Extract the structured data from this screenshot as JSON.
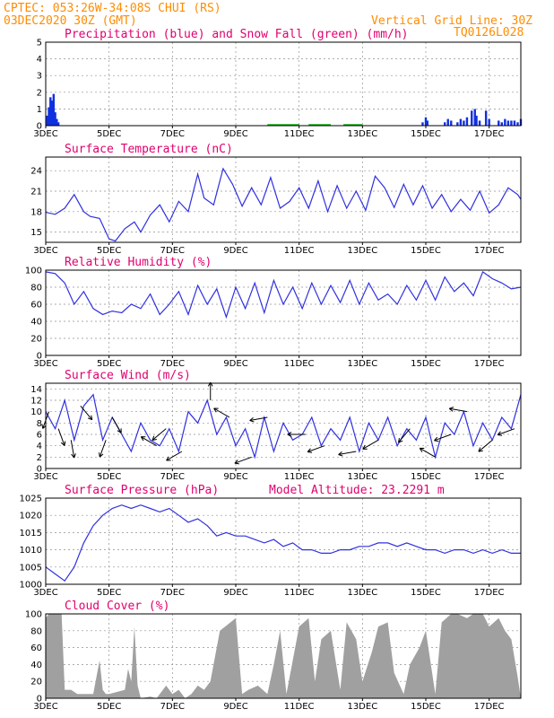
{
  "header": {
    "line1": "CPTEC:   053:26W-34:08S   CHUI (RS)",
    "line2": "03DEC2020 30Z (GMT)",
    "grid_note": "Vertical Grid Line: 30Z",
    "run_id": "TQ0126L028"
  },
  "x_ticks": [
    "3DEC",
    "5DEC",
    "7DEC",
    "9DEC",
    "11DEC",
    "13DEC",
    "15DEC",
    "17DEC"
  ],
  "colors": {
    "header": "#ff8c00",
    "title": "#e0006f",
    "line": "#3030e0",
    "precip": "#1030e0",
    "snow": "#10b010",
    "cloud": "#a0a0a0",
    "grid": "#909090"
  },
  "chart_data": [
    {
      "id": "precip",
      "type": "bar",
      "title": "Precipitation (blue) and Snow Fall (green) (mm/h)",
      "x_unit": "days since 3DEC",
      "ylim": [
        0,
        5
      ],
      "yticks": [
        0,
        1,
        2,
        3,
        4,
        5
      ],
      "series": [
        {
          "name": "Precipitation",
          "points": [
            [
              0.05,
              0.6
            ],
            [
              0.1,
              1.1
            ],
            [
              0.15,
              1.7
            ],
            [
              0.2,
              1.5
            ],
            [
              0.25,
              1.9
            ],
            [
              0.3,
              0.8
            ],
            [
              0.35,
              0.4
            ],
            [
              0.4,
              0.2
            ],
            [
              11.9,
              0.2
            ],
            [
              12.0,
              0.5
            ],
            [
              12.05,
              0.3
            ],
            [
              12.6,
              0.2
            ],
            [
              12.7,
              0.4
            ],
            [
              12.8,
              0.3
            ],
            [
              13.0,
              0.2
            ],
            [
              13.1,
              0.4
            ],
            [
              13.2,
              0.3
            ],
            [
              13.3,
              0.5
            ],
            [
              13.45,
              0.9
            ],
            [
              13.55,
              1.0
            ],
            [
              13.6,
              0.6
            ],
            [
              13.7,
              0.3
            ],
            [
              13.9,
              0.9
            ],
            [
              14.0,
              0.4
            ],
            [
              14.3,
              0.3
            ],
            [
              14.4,
              0.2
            ],
            [
              14.5,
              0.4
            ],
            [
              14.6,
              0.3
            ],
            [
              14.7,
              0.3
            ],
            [
              14.8,
              0.3
            ],
            [
              14.9,
              0.2
            ],
            [
              15.0,
              0.4
            ]
          ]
        },
        {
          "name": "Snow Fall",
          "points": []
        }
      ]
    },
    {
      "id": "temp",
      "type": "line",
      "title": "Surface Temperature (nC)",
      "ylim": [
        13.5,
        26
      ],
      "yticks": [
        15,
        18,
        21,
        24
      ],
      "x": [
        0,
        0.3,
        0.6,
        0.9,
        1.2,
        1.4,
        1.7,
        2.0,
        2.2,
        2.5,
        2.8,
        3.0,
        3.3,
        3.6,
        3.9,
        4.2,
        4.5,
        4.8,
        5.0,
        5.3,
        5.6,
        5.9,
        6.2,
        6.5,
        6.8,
        7.1,
        7.4,
        7.7,
        8.0,
        8.3,
        8.6,
        8.9,
        9.2,
        9.5,
        9.8,
        10.1,
        10.4,
        10.7,
        11.0,
        11.3,
        11.6,
        11.9,
        12.2,
        12.5,
        12.8,
        13.1,
        13.4,
        13.7,
        14.0,
        14.3,
        14.6,
        14.9,
        15.0
      ],
      "y": [
        17.9,
        17.6,
        18.5,
        20.5,
        18.0,
        17.3,
        17.0,
        14.0,
        13.7,
        15.5,
        16.5,
        15.0,
        17.5,
        19.0,
        16.5,
        19.5,
        18.0,
        23.5,
        20.0,
        19.0,
        24.3,
        22.0,
        18.8,
        21.5,
        19.0,
        23.0,
        18.5,
        19.5,
        21.5,
        18.5,
        22.5,
        18.0,
        21.8,
        18.5,
        21.0,
        18.2,
        23.2,
        21.5,
        18.6,
        22.0,
        19.0,
        21.8,
        18.5,
        20.5,
        18.0,
        19.8,
        18.2,
        21.0,
        17.8,
        19.0,
        21.5,
        20.5,
        19.8
      ]
    },
    {
      "id": "rh",
      "type": "line",
      "title": "Relative Humidity (%)",
      "ylim": [
        0,
        100
      ],
      "yticks": [
        0,
        20,
        40,
        60,
        80,
        100
      ],
      "x": [
        0,
        0.3,
        0.6,
        0.9,
        1.2,
        1.5,
        1.8,
        2.1,
        2.4,
        2.7,
        3.0,
        3.3,
        3.6,
        3.9,
        4.2,
        4.5,
        4.8,
        5.1,
        5.4,
        5.7,
        6.0,
        6.3,
        6.6,
        6.9,
        7.2,
        7.5,
        7.8,
        8.1,
        8.4,
        8.7,
        9.0,
        9.3,
        9.6,
        9.9,
        10.2,
        10.5,
        10.8,
        11.1,
        11.4,
        11.7,
        12.0,
        12.3,
        12.6,
        12.9,
        13.2,
        13.5,
        13.8,
        14.1,
        14.4,
        14.7,
        15.0
      ],
      "y": [
        98,
        96,
        85,
        60,
        75,
        55,
        48,
        52,
        50,
        60,
        55,
        72,
        48,
        60,
        75,
        48,
        82,
        60,
        78,
        45,
        80,
        55,
        85,
        50,
        88,
        60,
        80,
        55,
        85,
        60,
        82,
        62,
        88,
        60,
        85,
        65,
        72,
        60,
        82,
        65,
        88,
        65,
        92,
        75,
        85,
        70,
        98,
        90,
        85,
        78,
        80
      ]
    },
    {
      "id": "wind",
      "type": "line",
      "title": "Surface Wind (m/s)",
      "ylim": [
        0,
        15
      ],
      "yticks": [
        0,
        2,
        4,
        6,
        8,
        10,
        12,
        14
      ],
      "x": [
        0,
        0.3,
        0.6,
        0.9,
        1.2,
        1.5,
        1.8,
        2.1,
        2.4,
        2.7,
        3.0,
        3.3,
        3.6,
        3.9,
        4.2,
        4.5,
        4.8,
        5.1,
        5.4,
        5.7,
        6.0,
        6.3,
        6.6,
        6.9,
        7.2,
        7.5,
        7.8,
        8.1,
        8.4,
        8.7,
        9.0,
        9.3,
        9.6,
        9.9,
        10.2,
        10.5,
        10.8,
        11.1,
        11.4,
        11.7,
        12.0,
        12.3,
        12.6,
        12.9,
        13.2,
        13.5,
        13.8,
        14.1,
        14.4,
        14.7,
        15.0
      ],
      "y": [
        10,
        7,
        12,
        5,
        11,
        13,
        5,
        9,
        6,
        3,
        8,
        5,
        4,
        7,
        3,
        10,
        8,
        12,
        6,
        9,
        4,
        7,
        2,
        9,
        3,
        8,
        5,
        6,
        9,
        4,
        7,
        5,
        9,
        3,
        8,
        5,
        9,
        4,
        7,
        5,
        9,
        2,
        8,
        6,
        10,
        4,
        8,
        5,
        9,
        7,
        13
      ],
      "arrows": [
        [
          0.1,
          200
        ],
        [
          0.4,
          160
        ],
        [
          0.8,
          170
        ],
        [
          1.1,
          140
        ],
        [
          1.9,
          200
        ],
        [
          2.1,
          150
        ],
        [
          3.5,
          300
        ],
        [
          3.8,
          230
        ],
        [
          4.3,
          240
        ],
        [
          5.2,
          0
        ],
        [
          5.8,
          300
        ],
        [
          6.5,
          250
        ],
        [
          7.0,
          260
        ],
        [
          8.2,
          270
        ],
        [
          8.8,
          250
        ],
        [
          9.8,
          260
        ],
        [
          10.5,
          240
        ],
        [
          11.5,
          220
        ],
        [
          12.3,
          300
        ],
        [
          12.8,
          250
        ],
        [
          13.3,
          280
        ],
        [
          14.1,
          230
        ],
        [
          14.8,
          250
        ]
      ]
    },
    {
      "id": "pressure",
      "type": "line",
      "title": "Surface Pressure (hPa)",
      "annotation": "Model Altitude: 23.2291 m",
      "ylim": [
        1000,
        1025
      ],
      "yticks": [
        1000,
        1005,
        1010,
        1015,
        1020,
        1025
      ],
      "x": [
        0,
        0.3,
        0.6,
        0.9,
        1.2,
        1.5,
        1.8,
        2.1,
        2.4,
        2.7,
        3.0,
        3.3,
        3.6,
        3.9,
        4.2,
        4.5,
        4.8,
        5.1,
        5.4,
        5.7,
        6.0,
        6.3,
        6.6,
        6.9,
        7.2,
        7.5,
        7.8,
        8.1,
        8.4,
        8.7,
        9.0,
        9.3,
        9.6,
        9.9,
        10.2,
        10.5,
        10.8,
        11.1,
        11.4,
        11.7,
        12.0,
        12.3,
        12.6,
        12.9,
        13.2,
        13.5,
        13.8,
        14.1,
        14.4,
        14.7,
        15.0
      ],
      "y": [
        1005,
        1003,
        1001,
        1005,
        1012,
        1017,
        1020,
        1022,
        1023,
        1022,
        1023,
        1022,
        1021,
        1022,
        1020,
        1018,
        1019,
        1017,
        1014,
        1015,
        1014,
        1014,
        1013,
        1012,
        1013,
        1011,
        1012,
        1010,
        1010,
        1009,
        1009,
        1010,
        1010,
        1011,
        1011,
        1012,
        1012,
        1011,
        1012,
        1011,
        1010,
        1010,
        1009,
        1010,
        1010,
        1009,
        1010,
        1009,
        1010,
        1009,
        1009
      ]
    },
    {
      "id": "cloud",
      "type": "area",
      "title": "Cloud Cover (%)",
      "ylim": [
        0,
        100
      ],
      "yticks": [
        0,
        20,
        40,
        60,
        80,
        100
      ],
      "x": [
        0,
        0.1,
        0.5,
        0.6,
        0.8,
        1.0,
        1.5,
        1.7,
        1.8,
        1.9,
        2.0,
        2.5,
        2.6,
        2.7,
        2.8,
        2.9,
        3.0,
        3.3,
        3.5,
        3.8,
        4.0,
        4.2,
        4.4,
        4.6,
        4.8,
        5.0,
        5.2,
        5.5,
        6.0,
        6.2,
        6.4,
        6.7,
        7.0,
        7.2,
        7.4,
        7.6,
        7.8,
        8.0,
        8.3,
        8.5,
        8.7,
        9.0,
        9.3,
        9.5,
        9.8,
        10.0,
        10.3,
        10.5,
        10.8,
        11.0,
        11.3,
        11.5,
        11.8,
        12.0,
        12.3,
        12.5,
        12.8,
        13.0,
        13.3,
        13.5,
        13.8,
        14.0,
        14.3,
        14.5,
        14.7,
        14.9,
        15.0
      ],
      "y": [
        95,
        100,
        100,
        10,
        10,
        5,
        5,
        45,
        10,
        5,
        5,
        10,
        35,
        20,
        85,
        15,
        0,
        2,
        0,
        15,
        5,
        10,
        0,
        5,
        15,
        10,
        20,
        80,
        95,
        5,
        10,
        15,
        5,
        40,
        80,
        5,
        45,
        85,
        95,
        20,
        70,
        80,
        10,
        90,
        70,
        20,
        55,
        85,
        90,
        30,
        5,
        40,
        60,
        80,
        5,
        90,
        100,
        100,
        95,
        100,
        100,
        85,
        95,
        80,
        70,
        25,
        0
      ]
    }
  ]
}
